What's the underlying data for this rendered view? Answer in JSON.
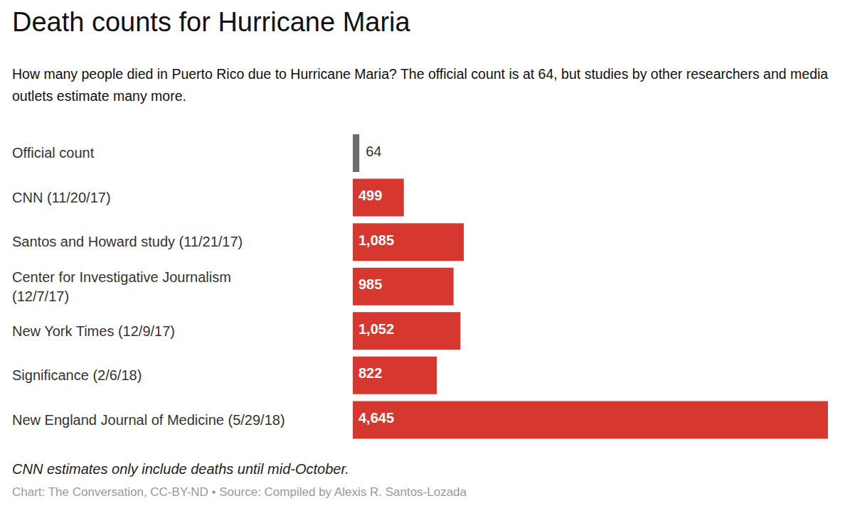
{
  "chart_data": {
    "type": "bar",
    "orientation": "horizontal",
    "title": "Death counts for Hurricane Maria",
    "subtitle": "How many people died in Puerto Rico due to Hurricane Maria? The official count is at 64, but studies by other researchers and media outlets estimate many more.",
    "categories": [
      "Official count",
      "CNN (11/20/17)",
      "Santos and Howard study (11/21/17)",
      "Center for Investigative Journalism (12/7/17)",
      "New York Times (12/9/17)",
      "Significance (2/6/18)",
      "New England Journal of Medicine (5/29/18)"
    ],
    "values": [
      64,
      499,
      1085,
      985,
      1052,
      822,
      4645
    ],
    "value_labels": [
      "64",
      "499",
      "1,085",
      "985",
      "1,052",
      "822",
      "4,645"
    ],
    "colors": [
      "#6d6d6d",
      "#d6382f",
      "#d6382f",
      "#d6382f",
      "#d6382f",
      "#d6382f",
      "#d6382f"
    ],
    "xlim": [
      0,
      4645
    ],
    "data_labels": true,
    "tick_labels": false,
    "note": "CNN estimates only include deaths until mid-October.",
    "source": "Chart: The Conversation, CC-BY-ND • Source: Compiled by Alexis R. Santos-Lozada"
  }
}
